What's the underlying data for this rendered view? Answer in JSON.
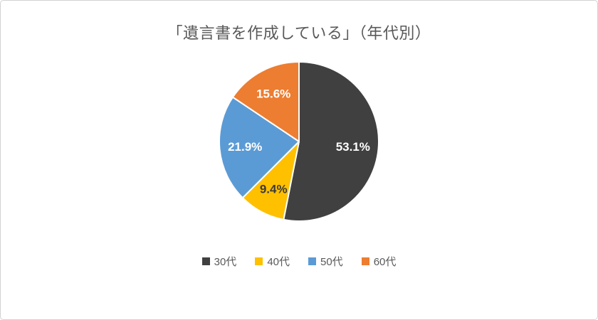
{
  "chart_data": {
    "type": "pie",
    "title": "「遺言書を作成している」（年代別）",
    "labels": [
      "30代",
      "40代",
      "50代",
      "60代"
    ],
    "values": [
      53.1,
      9.4,
      21.9,
      15.6
    ],
    "unit": "%",
    "value_label_format": "percent-one-decimal",
    "colors": [
      "#404040",
      "#FFC000",
      "#5B9BD5",
      "#ED7D31"
    ],
    "label_colors": [
      "#FFFFFF",
      "#3A3A3A",
      "#FFFFFF",
      "#FFFFFF"
    ],
    "start_angle_deg": 0,
    "direction": "clockwise",
    "legend_position": "bottom",
    "slice_border_color": "#FFFFFF",
    "title_color": "#595959",
    "legend_text_color": "#595959"
  }
}
